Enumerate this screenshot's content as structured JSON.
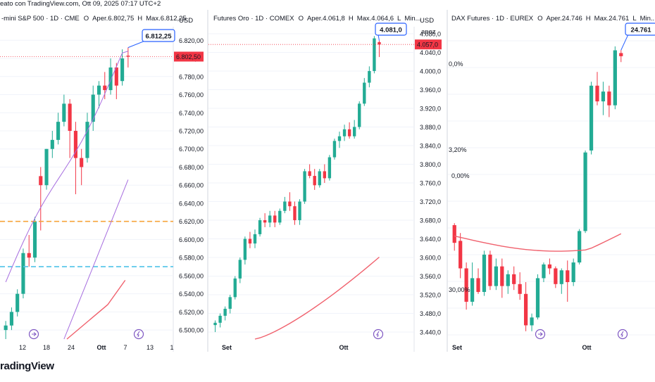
{
  "topline": "eato con TradingView.com, Ott 09, 2025 07:17 UTC+2",
  "watermark": "radingView",
  "colors": {
    "up": "#22ab94",
    "down": "#f23645",
    "ma": "#f0616d",
    "purple": "#a66ddf",
    "orange": "#f7a43b",
    "cyan": "#4fc3e8",
    "label": "#2962ff",
    "grid": "#f0f3fa"
  },
  "chart_data": [
    {
      "type": "candlestick",
      "title": "-mini S&P 500 · 1D · CME",
      "ohlc_text": {
        "o_label": "O",
        "o": "Aper.6.802,75",
        "h_label": "H",
        "h": "Max.6.812,25"
      },
      "price_scale": "USD",
      "ylim": [
        6490,
        6835
      ],
      "y_ticks": [
        "6.820,00",
        "6.800,00",
        "6.780,00",
        "6.760,00",
        "6.740,00",
        "6.720,00",
        "6.700,00",
        "6.680,00",
        "6.660,00",
        "6.640,00",
        "6.620,00",
        "6.600,00",
        "6.580,00",
        "6.560,00",
        "6.540,00",
        "6.520,00",
        "6.500,00"
      ],
      "last_label": "6.802,50",
      "callout": "6.812,25",
      "x_labels": [
        "12",
        "18",
        "24",
        "Ott",
        "7",
        "13",
        "1"
      ],
      "candles": [
        [
          6500,
          6510,
          6490,
          6505
        ],
        [
          6505,
          6525,
          6500,
          6520
        ],
        [
          6520,
          6545,
          6515,
          6540
        ],
        [
          6540,
          6590,
          6535,
          6585
        ],
        [
          6585,
          6605,
          6570,
          6580
        ],
        [
          6580,
          6625,
          6575,
          6620
        ],
        [
          6670,
          6680,
          6610,
          6660
        ],
        [
          6660,
          6700,
          6655,
          6700
        ],
        [
          6700,
          6720,
          6690,
          6710
        ],
        [
          6710,
          6740,
          6705,
          6730
        ],
        [
          6730,
          6760,
          6725,
          6750
        ],
        [
          6750,
          6755,
          6690,
          6720
        ],
        [
          6720,
          6730,
          6650,
          6690
        ],
        [
          6690,
          6700,
          6660,
          6680
        ],
        [
          6690,
          6740,
          6685,
          6730
        ],
        [
          6730,
          6770,
          6720,
          6760
        ],
        [
          6760,
          6775,
          6745,
          6770
        ],
        [
          6770,
          6785,
          6755,
          6765
        ],
        [
          6765,
          6800,
          6760,
          6790
        ],
        [
          6790,
          6795,
          6755,
          6770
        ],
        [
          6775,
          6810,
          6770,
          6800
        ],
        [
          6803,
          6812,
          6790,
          6802
        ]
      ],
      "orange_level": 6620,
      "cyan_level": 6570
    },
    {
      "type": "candlestick",
      "title": "Futures Oro · 1D · COMEX",
      "ohlc_text": {
        "o_label": "O",
        "o": "Aper.4.061,8",
        "h_label": "H",
        "h": "Max.4.064,6",
        "l_label": "L",
        "l": "Min..."
      },
      "price_scale": "USD",
      "ylim": [
        3425,
        4095
      ],
      "y_ticks": [
        "4.080,0",
        "4.040,0",
        "4.000,0",
        "3.960,0",
        "3.920,0",
        "3.880,0",
        "3.840,0",
        "3.800,0",
        "3.760,0",
        "3.720,0",
        "3.680,0",
        "3.640,0",
        "3.600,0",
        "3.560,0",
        "3.520,0",
        "3.480,0",
        "3.440,0"
      ],
      "last_label": "4.057,0",
      "callout": "4.081,0",
      "x_labels": [
        "Set",
        "Ott"
      ],
      "candles": [
        [
          3455,
          3465,
          3440,
          3460
        ],
        [
          3460,
          3480,
          3450,
          3475
        ],
        [
          3475,
          3495,
          3465,
          3490
        ],
        [
          3490,
          3520,
          3480,
          3515
        ],
        [
          3515,
          3560,
          3510,
          3555
        ],
        [
          3555,
          3600,
          3545,
          3595
        ],
        [
          3595,
          3645,
          3585,
          3640
        ],
        [
          3640,
          3655,
          3620,
          3630
        ],
        [
          3630,
          3660,
          3620,
          3650
        ],
        [
          3650,
          3685,
          3645,
          3680
        ],
        [
          3680,
          3695,
          3665,
          3675
        ],
        [
          3675,
          3700,
          3665,
          3690
        ],
        [
          3690,
          3700,
          3665,
          3675
        ],
        [
          3675,
          3705,
          3670,
          3700
        ],
        [
          3700,
          3730,
          3695,
          3720
        ],
        [
          3720,
          3740,
          3700,
          3710
        ],
        [
          3710,
          3720,
          3670,
          3680
        ],
        [
          3680,
          3725,
          3670,
          3720
        ],
        [
          3720,
          3790,
          3715,
          3785
        ],
        [
          3785,
          3800,
          3770,
          3775
        ],
        [
          3775,
          3790,
          3745,
          3755
        ],
        [
          3755,
          3790,
          3750,
          3785
        ],
        [
          3785,
          3800,
          3760,
          3770
        ],
        [
          3770,
          3820,
          3765,
          3815
        ],
        [
          3815,
          3855,
          3810,
          3850
        ],
        [
          3850,
          3870,
          3835,
          3860
        ],
        [
          3860,
          3885,
          3850,
          3875
        ],
        [
          3875,
          3890,
          3855,
          3860
        ],
        [
          3860,
          3895,
          3855,
          3880
        ],
        [
          3880,
          3935,
          3875,
          3930
        ],
        [
          3930,
          3985,
          3925,
          3975
        ],
        [
          3975,
          4010,
          3965,
          4000
        ],
        [
          4000,
          4075,
          3995,
          4070
        ],
        [
          4062,
          4065,
          4030,
          4057
        ]
      ]
    },
    {
      "type": "candlestick",
      "title": "DAX Futures · 1D · EUREX",
      "ohlc_text": {
        "o_label": "O",
        "o": "Aper.24.746",
        "h_label": "H",
        "h": "Max.24.761",
        "l_label": "L",
        "l": "Min..."
      },
      "price_scale": "apoz",
      "ylim": [
        23290,
        24880
      ],
      "y_ticks": [],
      "callout": "24.761",
      "x_labels": [
        "Set",
        "Ott"
      ],
      "fib_labels": [
        "0,0%",
        "3,20%",
        "0,00%",
        "30,00%"
      ],
      "candles": [
        [
          23870,
          23880,
          23740,
          23780
        ],
        [
          23790,
          23830,
          23600,
          23650
        ],
        [
          23650,
          23680,
          23440,
          23480
        ],
        [
          23480,
          23680,
          23460,
          23600
        ],
        [
          23600,
          23650,
          23520,
          23530
        ],
        [
          23530,
          23740,
          23510,
          23720
        ],
        [
          23720,
          23740,
          23540,
          23560
        ],
        [
          23560,
          23700,
          23540,
          23660
        ],
        [
          23660,
          23700,
          23500,
          23560
        ],
        [
          23560,
          23640,
          23520,
          23620
        ],
        [
          23620,
          23660,
          23540,
          23570
        ],
        [
          23570,
          23630,
          23490,
          23520
        ],
        [
          23520,
          23580,
          23330,
          23360
        ],
        [
          23360,
          23420,
          23330,
          23400
        ],
        [
          23400,
          23620,
          23390,
          23600
        ],
        [
          23600,
          23680,
          23580,
          23670
        ],
        [
          23670,
          23700,
          23620,
          23650
        ],
        [
          23650,
          23660,
          23550,
          23570
        ],
        [
          23570,
          23650,
          23520,
          23640
        ],
        [
          23640,
          23690,
          23480,
          23580
        ],
        [
          23580,
          23700,
          23560,
          23680
        ],
        [
          23680,
          23850,
          23670,
          23840
        ],
        [
          23840,
          24250,
          23830,
          24240
        ],
        [
          24250,
          24600,
          24230,
          24580
        ],
        [
          24580,
          24650,
          24480,
          24500
        ],
        [
          24500,
          24600,
          24430,
          24550
        ],
        [
          24550,
          24580,
          24420,
          24480
        ],
        [
          24480,
          24780,
          24460,
          24760
        ],
        [
          24746,
          24761,
          24700,
          24730
        ]
      ]
    }
  ]
}
